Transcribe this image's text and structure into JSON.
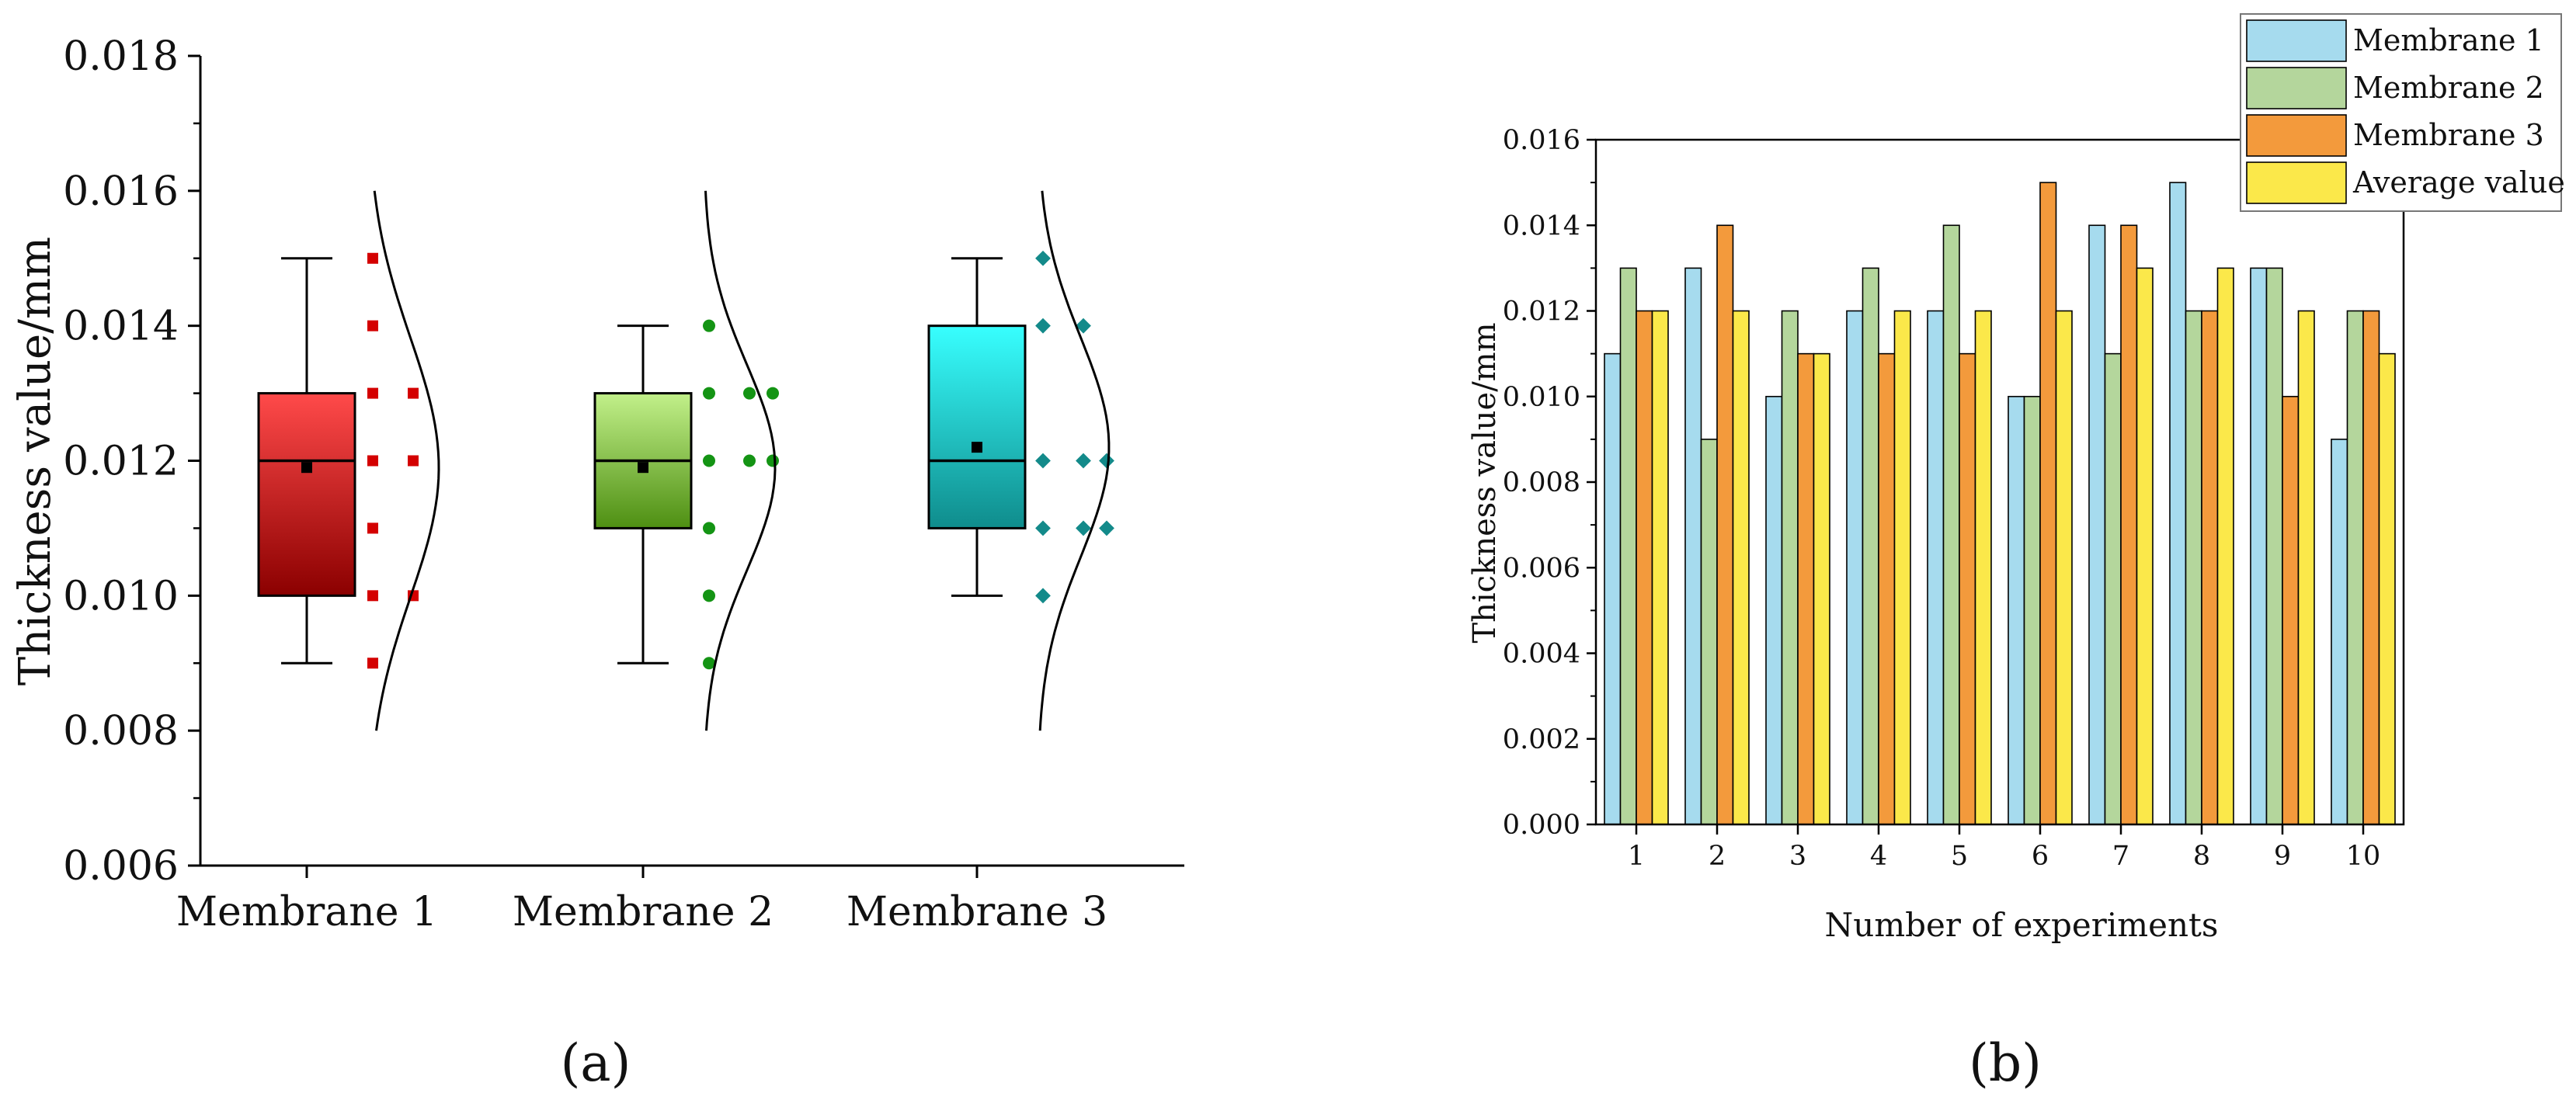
{
  "figure": {
    "panel_a_label": "(a)",
    "panel_b_label": "(b)"
  },
  "chart_data": [
    {
      "type": "box",
      "panel": "a",
      "ylabel": "Thickness value/mm",
      "ylim": [
        0.006,
        0.018
      ],
      "yticks": [
        "0.006",
        "0.008",
        "0.010",
        "0.012",
        "0.014",
        "0.016",
        "0.018"
      ],
      "categories": [
        "Membrane 1",
        "Membrane 2",
        "Membrane 3"
      ],
      "boxes": [
        {
          "name": "Membrane 1",
          "min": 0.009,
          "q1": 0.01,
          "median": 0.012,
          "q3": 0.013,
          "max": 0.015,
          "mean": 0.0119,
          "points": [
            0.015,
            0.014,
            0.013,
            0.013,
            0.012,
            0.012,
            0.011,
            0.01,
            0.01,
            0.009
          ],
          "color_top": "#ff4a4a",
          "color_bottom": "#8b0000",
          "point_color": "#d40000",
          "marker": "square"
        },
        {
          "name": "Membrane 2",
          "min": 0.009,
          "q1": 0.011,
          "median": 0.012,
          "q3": 0.013,
          "max": 0.014,
          "mean": 0.0119,
          "points": [
            0.014,
            0.013,
            0.013,
            0.013,
            0.012,
            0.012,
            0.012,
            0.011,
            0.01,
            0.009
          ],
          "color_top": "#c2f08a",
          "color_bottom": "#4e8f12",
          "point_color": "#149414",
          "marker": "circle"
        },
        {
          "name": "Membrane 3",
          "min": 0.01,
          "q1": 0.011,
          "median": 0.012,
          "q3": 0.014,
          "max": 0.015,
          "mean": 0.0122,
          "points": [
            0.015,
            0.014,
            0.014,
            0.012,
            0.012,
            0.012,
            0.011,
            0.011,
            0.011,
            0.01
          ],
          "color_top": "#38ffff",
          "color_bottom": "#0f8c8c",
          "point_color": "#138a8a",
          "marker": "diamond"
        }
      ]
    },
    {
      "type": "bar",
      "panel": "b",
      "title": "",
      "xlabel": "Number of experiments",
      "ylabel": "Thickness value/mm",
      "ylim": [
        0.0,
        0.016
      ],
      "yticks": [
        "0.000",
        "0.002",
        "0.004",
        "0.006",
        "0.008",
        "0.010",
        "0.012",
        "0.014",
        "0.016"
      ],
      "categories": [
        "1",
        "2",
        "3",
        "4",
        "5",
        "6",
        "7",
        "8",
        "9",
        "10"
      ],
      "legend_position": "top-right",
      "series": [
        {
          "name": "Membrane 1",
          "color": "#a6dbee",
          "values": [
            0.011,
            0.013,
            0.01,
            0.012,
            0.012,
            0.01,
            0.014,
            0.015,
            0.013,
            0.009
          ]
        },
        {
          "name": "Membrane 2",
          "color": "#b4d69c",
          "values": [
            0.013,
            0.009,
            0.012,
            0.013,
            0.014,
            0.01,
            0.011,
            0.012,
            0.013,
            0.012
          ]
        },
        {
          "name": "Membrane 3",
          "color": "#f39a3c",
          "values": [
            0.012,
            0.014,
            0.011,
            0.011,
            0.011,
            0.015,
            0.014,
            0.012,
            0.01,
            0.012
          ]
        },
        {
          "name": "Average value",
          "color": "#fbe84a",
          "values": [
            0.012,
            0.012,
            0.011,
            0.012,
            0.012,
            0.012,
            0.013,
            0.013,
            0.012,
            0.011
          ]
        }
      ]
    }
  ]
}
